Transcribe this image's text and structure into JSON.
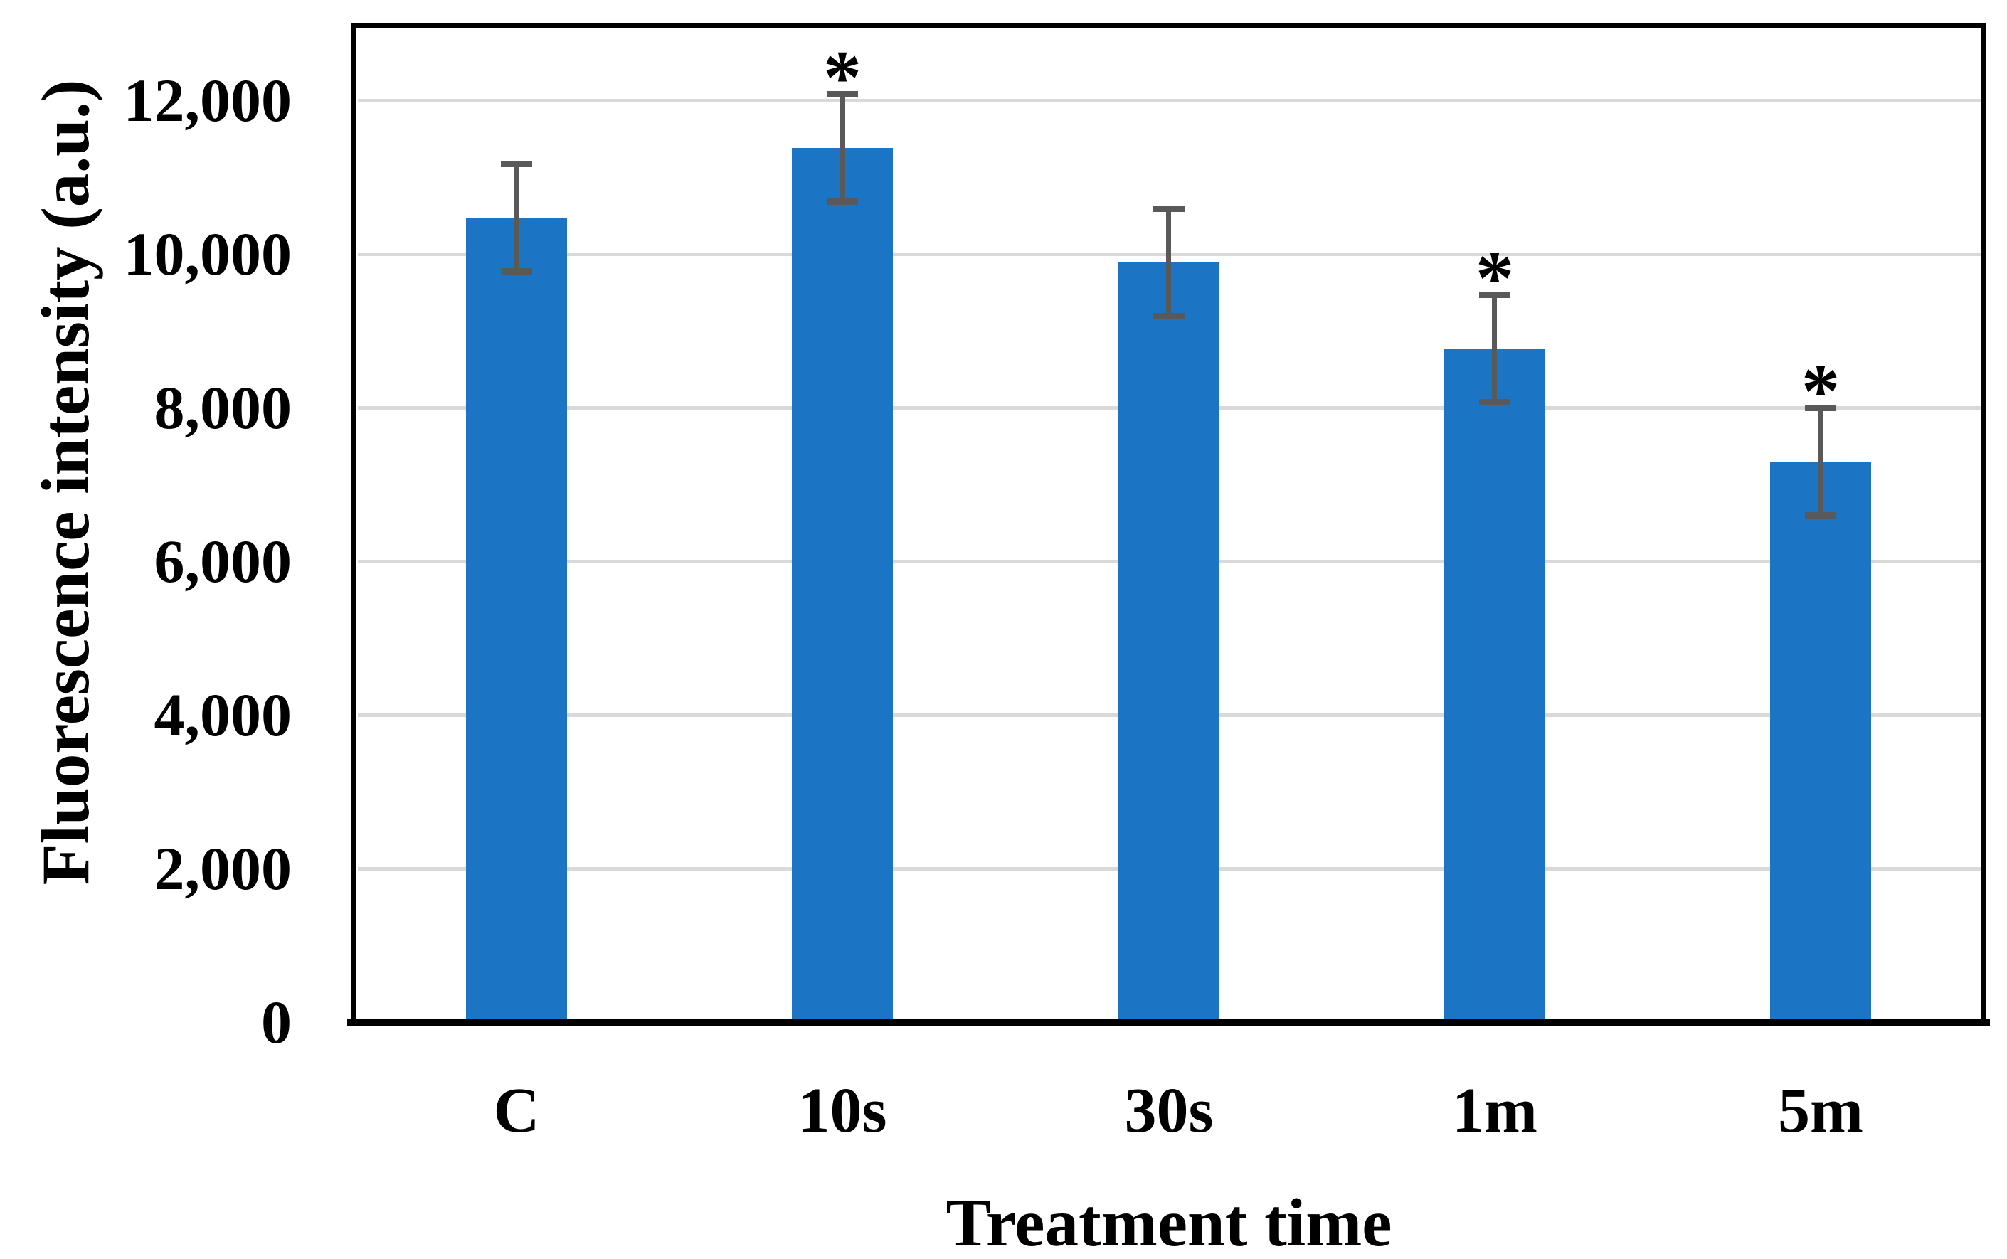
{
  "chart_data": {
    "type": "bar",
    "title": "",
    "xlabel": "Treatment time",
    "ylabel": "Fluorescence intensity (a.u.)",
    "categories": [
      "C",
      "10s",
      "30s",
      "1m",
      "5m"
    ],
    "values": [
      10470,
      11380,
      9890,
      8770,
      7300
    ],
    "error_bars": [
      700,
      700,
      700,
      700,
      700
    ],
    "significance": [
      false,
      true,
      false,
      true,
      true
    ],
    "significance_marker": "*",
    "ylim": [
      0,
      13000
    ],
    "yticks": [
      0,
      2000,
      4000,
      6000,
      8000,
      10000,
      12000
    ],
    "ytick_labels": [
      "0",
      "2,000",
      "4,000",
      "6,000",
      "8,000",
      "10,000",
      "12,000"
    ],
    "grid": true,
    "legend": "none",
    "bar_color": "#1C74C4",
    "error_color": "#595959",
    "gridline_color": "#D9D9D9",
    "axis_color": "#000000"
  }
}
